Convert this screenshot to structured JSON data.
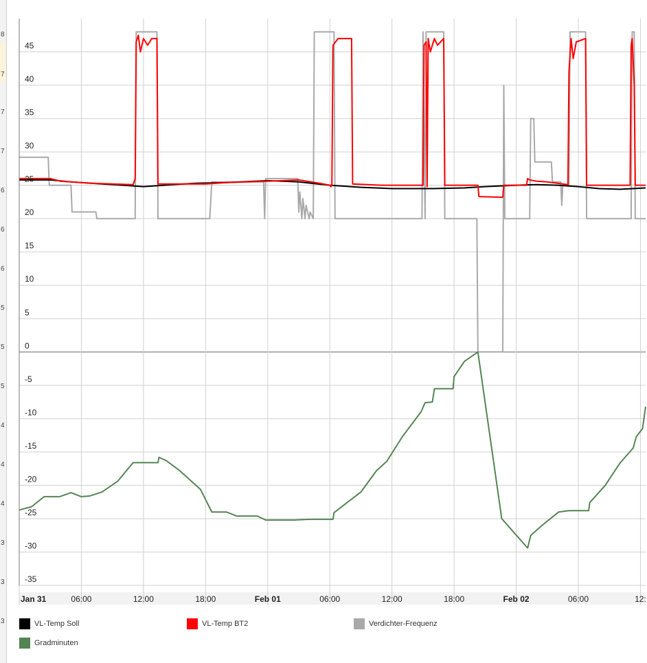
{
  "side_strip": {
    "chars": [
      "8",
      "7",
      "7",
      "7",
      "6",
      "6",
      "6",
      "5",
      "5",
      "5",
      "4",
      "4",
      "4",
      "3",
      "3",
      "3"
    ],
    "highlight_char": "6"
  },
  "chart_data": {
    "type": "line",
    "title": "",
    "xlabel": "",
    "ylabel": "",
    "ylim": [
      -35,
      48
    ],
    "yticks": [
      45,
      40,
      35,
      30,
      25,
      20,
      15,
      10,
      5,
      0,
      -5,
      -10,
      -15,
      -20,
      -25,
      -30,
      -35
    ],
    "x_unit": "hours since Jan 31 00:00",
    "xlim": [
      0,
      60.5
    ],
    "xticks": [
      {
        "x": 0,
        "label": "Jan 31",
        "bold": true
      },
      {
        "x": 6,
        "label": "06:00",
        "bold": false
      },
      {
        "x": 12,
        "label": "12:00",
        "bold": false
      },
      {
        "x": 18,
        "label": "18:00",
        "bold": false
      },
      {
        "x": 24,
        "label": "Feb 01",
        "bold": true
      },
      {
        "x": 30,
        "label": "06:00",
        "bold": false
      },
      {
        "x": 36,
        "label": "12:00",
        "bold": false
      },
      {
        "x": 42,
        "label": "18:00",
        "bold": false
      },
      {
        "x": 48,
        "label": "Feb 02",
        "bold": true
      },
      {
        "x": 54,
        "label": "06:00",
        "bold": false
      },
      {
        "x": 60,
        "label": "12:",
        "bold": false
      }
    ],
    "grid": true,
    "legend_position": "bottom",
    "series": [
      {
        "name": "Verdichter-Frequenz",
        "color": "#a9a9a9",
        "points": [
          [
            0,
            29.2
          ],
          [
            2.8,
            29.2
          ],
          [
            2.9,
            25
          ],
          [
            5,
            25
          ],
          [
            5.1,
            21
          ],
          [
            7.4,
            21
          ],
          [
            7.5,
            20
          ],
          [
            11.2,
            20
          ],
          [
            11.3,
            48
          ],
          [
            13.3,
            48
          ],
          [
            13.4,
            20
          ],
          [
            18.4,
            20
          ],
          [
            18.6,
            25.5
          ],
          [
            23.6,
            25.5
          ],
          [
            23.7,
            20
          ],
          [
            23.8,
            26
          ],
          [
            26.9,
            26
          ],
          [
            27,
            21
          ],
          [
            27.1,
            24
          ],
          [
            27.3,
            20
          ],
          [
            27.4,
            23
          ],
          [
            27.6,
            20
          ],
          [
            27.7,
            22
          ],
          [
            28,
            20
          ],
          [
            28.1,
            21
          ],
          [
            28.4,
            20
          ],
          [
            28.5,
            48
          ],
          [
            30.4,
            48
          ],
          [
            30.5,
            20
          ],
          [
            38.9,
            20
          ],
          [
            39,
            48
          ],
          [
            39.2,
            20
          ],
          [
            39.3,
            48
          ],
          [
            41,
            48
          ],
          [
            41.1,
            20
          ],
          [
            44.2,
            20
          ],
          [
            44.3,
            0
          ],
          [
            46.7,
            0
          ],
          [
            46.8,
            40
          ],
          [
            46.9,
            20
          ],
          [
            49.3,
            20
          ],
          [
            49.4,
            35
          ],
          [
            49.7,
            35
          ],
          [
            49.8,
            28.5
          ],
          [
            51.4,
            28.5
          ],
          [
            51.5,
            25.5
          ],
          [
            52.3,
            25.5
          ],
          [
            52.4,
            22
          ],
          [
            52.5,
            25
          ],
          [
            53.1,
            25
          ],
          [
            53.2,
            48
          ],
          [
            54.7,
            48
          ],
          [
            54.8,
            20
          ],
          [
            59.1,
            20
          ],
          [
            59.2,
            48
          ],
          [
            59.4,
            48
          ],
          [
            59.5,
            20
          ],
          [
            60.5,
            20
          ]
        ]
      },
      {
        "name": "VL-Temp Soll",
        "color": "#000000",
        "points": [
          [
            0,
            25.8
          ],
          [
            3,
            25.8
          ],
          [
            5,
            25.5
          ],
          [
            8,
            25.2
          ],
          [
            10,
            25
          ],
          [
            12,
            24.8
          ],
          [
            14,
            25
          ],
          [
            17,
            25.3
          ],
          [
            20,
            25.4
          ],
          [
            24,
            25.7
          ],
          [
            27,
            25.5
          ],
          [
            30,
            25
          ],
          [
            33,
            24.7
          ],
          [
            36,
            24.5
          ],
          [
            40,
            24.5
          ],
          [
            43,
            24.6
          ],
          [
            45,
            24.8
          ],
          [
            48,
            25
          ],
          [
            50,
            25.1
          ],
          [
            52,
            25
          ],
          [
            54,
            24.8
          ],
          [
            56,
            24.5
          ],
          [
            58,
            24.4
          ],
          [
            60.5,
            24.6
          ]
        ]
      },
      {
        "name": "VL-Temp BT2",
        "color": "#ff0000",
        "points": [
          [
            0,
            26
          ],
          [
            3,
            26
          ],
          [
            4,
            25.6
          ],
          [
            7,
            25.3
          ],
          [
            11,
            25.1
          ],
          [
            11.2,
            26
          ],
          [
            11.3,
            46.5
          ],
          [
            11.5,
            47.5
          ],
          [
            11.7,
            45
          ],
          [
            12,
            47
          ],
          [
            12.4,
            46
          ],
          [
            12.8,
            47
          ],
          [
            13.3,
            47
          ],
          [
            13.4,
            25.2
          ],
          [
            16,
            25.2
          ],
          [
            18,
            25.2
          ],
          [
            20,
            25.4
          ],
          [
            24,
            25.6
          ],
          [
            27,
            25.8
          ],
          [
            29,
            25.3
          ],
          [
            30,
            25
          ],
          [
            30.1,
            24.8
          ],
          [
            30.2,
            25
          ],
          [
            30.3,
            46
          ],
          [
            30.8,
            47
          ],
          [
            32.1,
            47
          ],
          [
            32.2,
            25.2
          ],
          [
            35,
            25
          ],
          [
            39,
            25
          ],
          [
            39.1,
            46
          ],
          [
            39.3,
            46.5
          ],
          [
            39.4,
            24.8
          ],
          [
            39.5,
            47
          ],
          [
            39.7,
            45
          ],
          [
            40.1,
            47
          ],
          [
            40.4,
            46
          ],
          [
            41,
            47
          ],
          [
            41.1,
            25
          ],
          [
            44.3,
            25
          ],
          [
            44.4,
            23.3
          ],
          [
            46.7,
            23.2
          ],
          [
            46.8,
            25
          ],
          [
            49,
            25
          ],
          [
            49.1,
            26
          ],
          [
            49.3,
            25.8
          ],
          [
            50,
            25.6
          ],
          [
            51,
            25.5
          ],
          [
            53,
            25.1
          ],
          [
            53.1,
            42
          ],
          [
            53.3,
            47
          ],
          [
            53.5,
            44
          ],
          [
            53.8,
            46.5
          ],
          [
            54.7,
            47
          ],
          [
            54.8,
            25
          ],
          [
            59,
            25
          ],
          [
            59.1,
            46
          ],
          [
            59.2,
            47
          ],
          [
            59.4,
            40
          ],
          [
            59.5,
            25
          ],
          [
            60.5,
            25
          ]
        ]
      },
      {
        "name": "Gradminuten",
        "color": "#548452",
        "points": [
          [
            0,
            -23.7
          ],
          [
            1.2,
            -23.2
          ],
          [
            2.4,
            -21.7
          ],
          [
            3.9,
            -21.7
          ],
          [
            5,
            -21.1
          ],
          [
            6,
            -21.7
          ],
          [
            6.8,
            -21.6
          ],
          [
            8,
            -21
          ],
          [
            9.5,
            -19.4
          ],
          [
            11,
            -16.6
          ],
          [
            13.4,
            -16.6
          ],
          [
            13.5,
            -15.8
          ],
          [
            14.2,
            -16.3
          ],
          [
            15.5,
            -17.8
          ],
          [
            17.5,
            -20.6
          ],
          [
            18.6,
            -24
          ],
          [
            20,
            -24
          ],
          [
            21,
            -24.6
          ],
          [
            23,
            -24.6
          ],
          [
            23.8,
            -25.2
          ],
          [
            26.6,
            -25.2
          ],
          [
            28,
            -25.1
          ],
          [
            30.3,
            -25.1
          ],
          [
            30.4,
            -24.1
          ],
          [
            33,
            -21
          ],
          [
            34.5,
            -17.8
          ],
          [
            35.5,
            -16.4
          ],
          [
            37,
            -12.7
          ],
          [
            38.8,
            -9
          ],
          [
            39.2,
            -7.6
          ],
          [
            39.9,
            -7.5
          ],
          [
            40.1,
            -5.5
          ],
          [
            41.9,
            -5.5
          ],
          [
            42,
            -3.7
          ],
          [
            43,
            -1.4
          ],
          [
            44.3,
            0
          ],
          [
            46.6,
            -25
          ],
          [
            49.1,
            -29.4
          ],
          [
            49.4,
            -27.5
          ],
          [
            50.5,
            -26
          ],
          [
            52.1,
            -24
          ],
          [
            53.1,
            -23.8
          ],
          [
            55,
            -23.8
          ],
          [
            55.1,
            -22.6
          ],
          [
            56.6,
            -20
          ],
          [
            58,
            -16.7
          ],
          [
            59.3,
            -14.4
          ],
          [
            59.6,
            -12.7
          ],
          [
            60.2,
            -11.5
          ],
          [
            60.5,
            -8.2
          ]
        ]
      }
    ]
  },
  "legend": [
    {
      "label": "VL-Temp Soll",
      "color": "#000000"
    },
    {
      "label": "VL-Temp BT2",
      "color": "#ff0000"
    },
    {
      "label": "Verdichter-Frequenz",
      "color": "#a9a9a9"
    },
    {
      "label": "Gradminuten",
      "color": "#548452"
    }
  ]
}
